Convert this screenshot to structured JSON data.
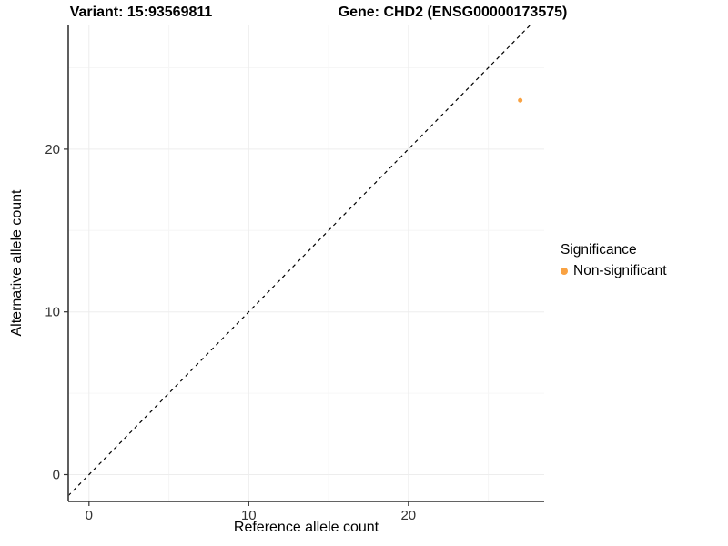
{
  "header": {
    "title_variant": "Variant: 15:93569811",
    "title_gene": "Gene: CHD2 (ENSG00000173575)"
  },
  "chart_data": {
    "type": "scatter",
    "title_left": "Variant: 15:93569811",
    "title_right": "Gene: CHD2 (ENSG00000173575)",
    "xlabel": "Reference allele count",
    "ylabel": "Alternative allele count",
    "xlim": [
      -1.3,
      28.5
    ],
    "ylim": [
      -1.65,
      27.6
    ],
    "x_major_ticks": [
      0,
      10,
      20
    ],
    "x_minor_ticks": [
      5,
      15,
      25
    ],
    "y_major_ticks": [
      0,
      10,
      20
    ],
    "y_minor_ticks": [
      5,
      15,
      25
    ],
    "grid": "very faint major and minor gridlines on white panel",
    "identity_line": {
      "slope": 1,
      "intercept": 0,
      "style": "dashed",
      "color": "#000000",
      "width": 1.2,
      "dash": "4,4"
    },
    "series": [
      {
        "name": "Non-significant",
        "color": "#F9A242",
        "point_radius_px": 2.5,
        "points": [
          [
            27,
            23
          ]
        ]
      }
    ],
    "legend": {
      "title": "Significance",
      "position": "right",
      "items": [
        {
          "label": "Non-significant",
          "color": "#F9A242"
        }
      ]
    },
    "style": {
      "background": "#ffffff",
      "axis_line_color": "#4d4d4d",
      "axis_line_width": 1.8,
      "tick_color": "#333333",
      "tick_length": 5,
      "tick_label_color": "#333333",
      "tick_label_size": 15,
      "grid_major_color": "#ededed",
      "grid_minor_color": "#f6f6f6"
    }
  }
}
